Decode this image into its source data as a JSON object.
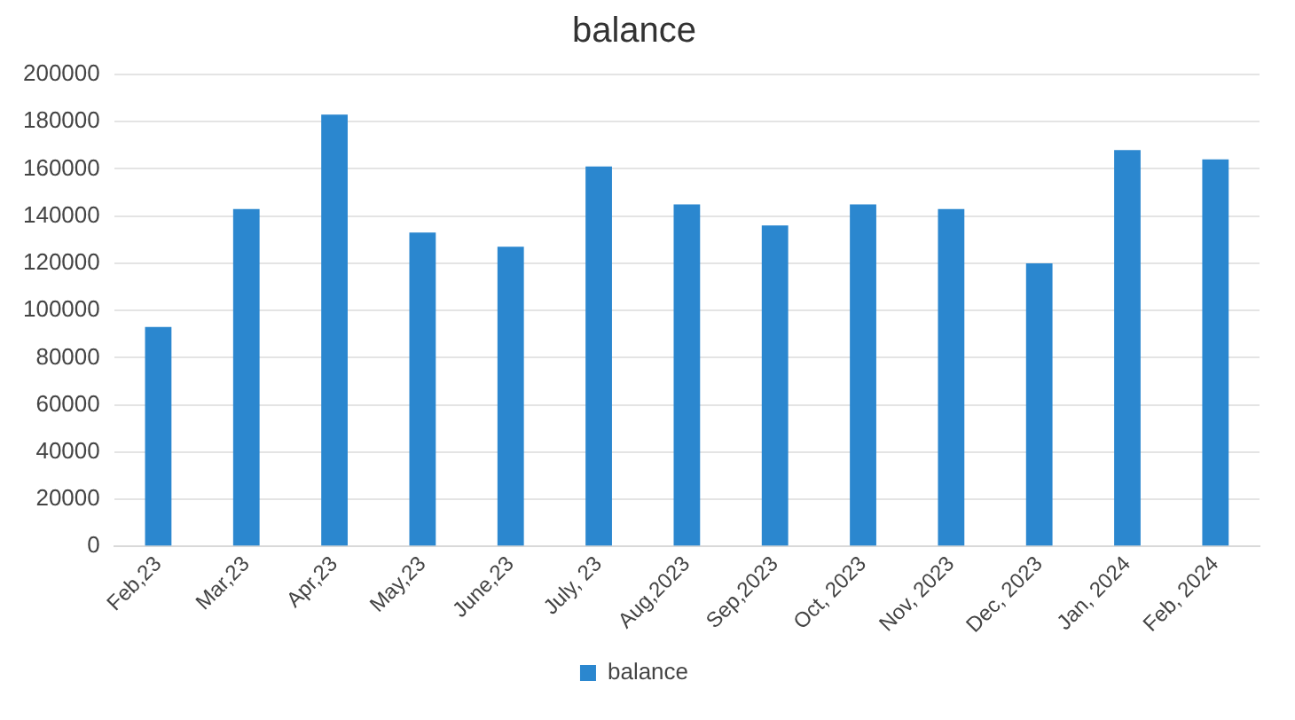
{
  "chart_data": {
    "type": "bar",
    "title": "balance",
    "categories": [
      "Feb,23",
      "Mar,23",
      "Apr,23",
      "May,23",
      "June,23",
      "July, 23",
      "Aug,2023",
      "Sep,2023",
      "Oct, 2023",
      "Nov, 2023",
      "Dec, 2023",
      "Jan, 2024",
      "Feb, 2024"
    ],
    "series": [
      {
        "name": "balance",
        "color": "#2b87cf",
        "values": [
          93000,
          143000,
          183000,
          133000,
          127000,
          161000,
          145000,
          136000,
          145000,
          143000,
          120000,
          168000,
          164000
        ]
      }
    ],
    "ylim": [
      0,
      200000
    ],
    "yticks": [
      0,
      20000,
      40000,
      60000,
      80000,
      100000,
      120000,
      140000,
      160000,
      180000,
      200000
    ],
    "grid": "y",
    "legend": "bottom"
  }
}
